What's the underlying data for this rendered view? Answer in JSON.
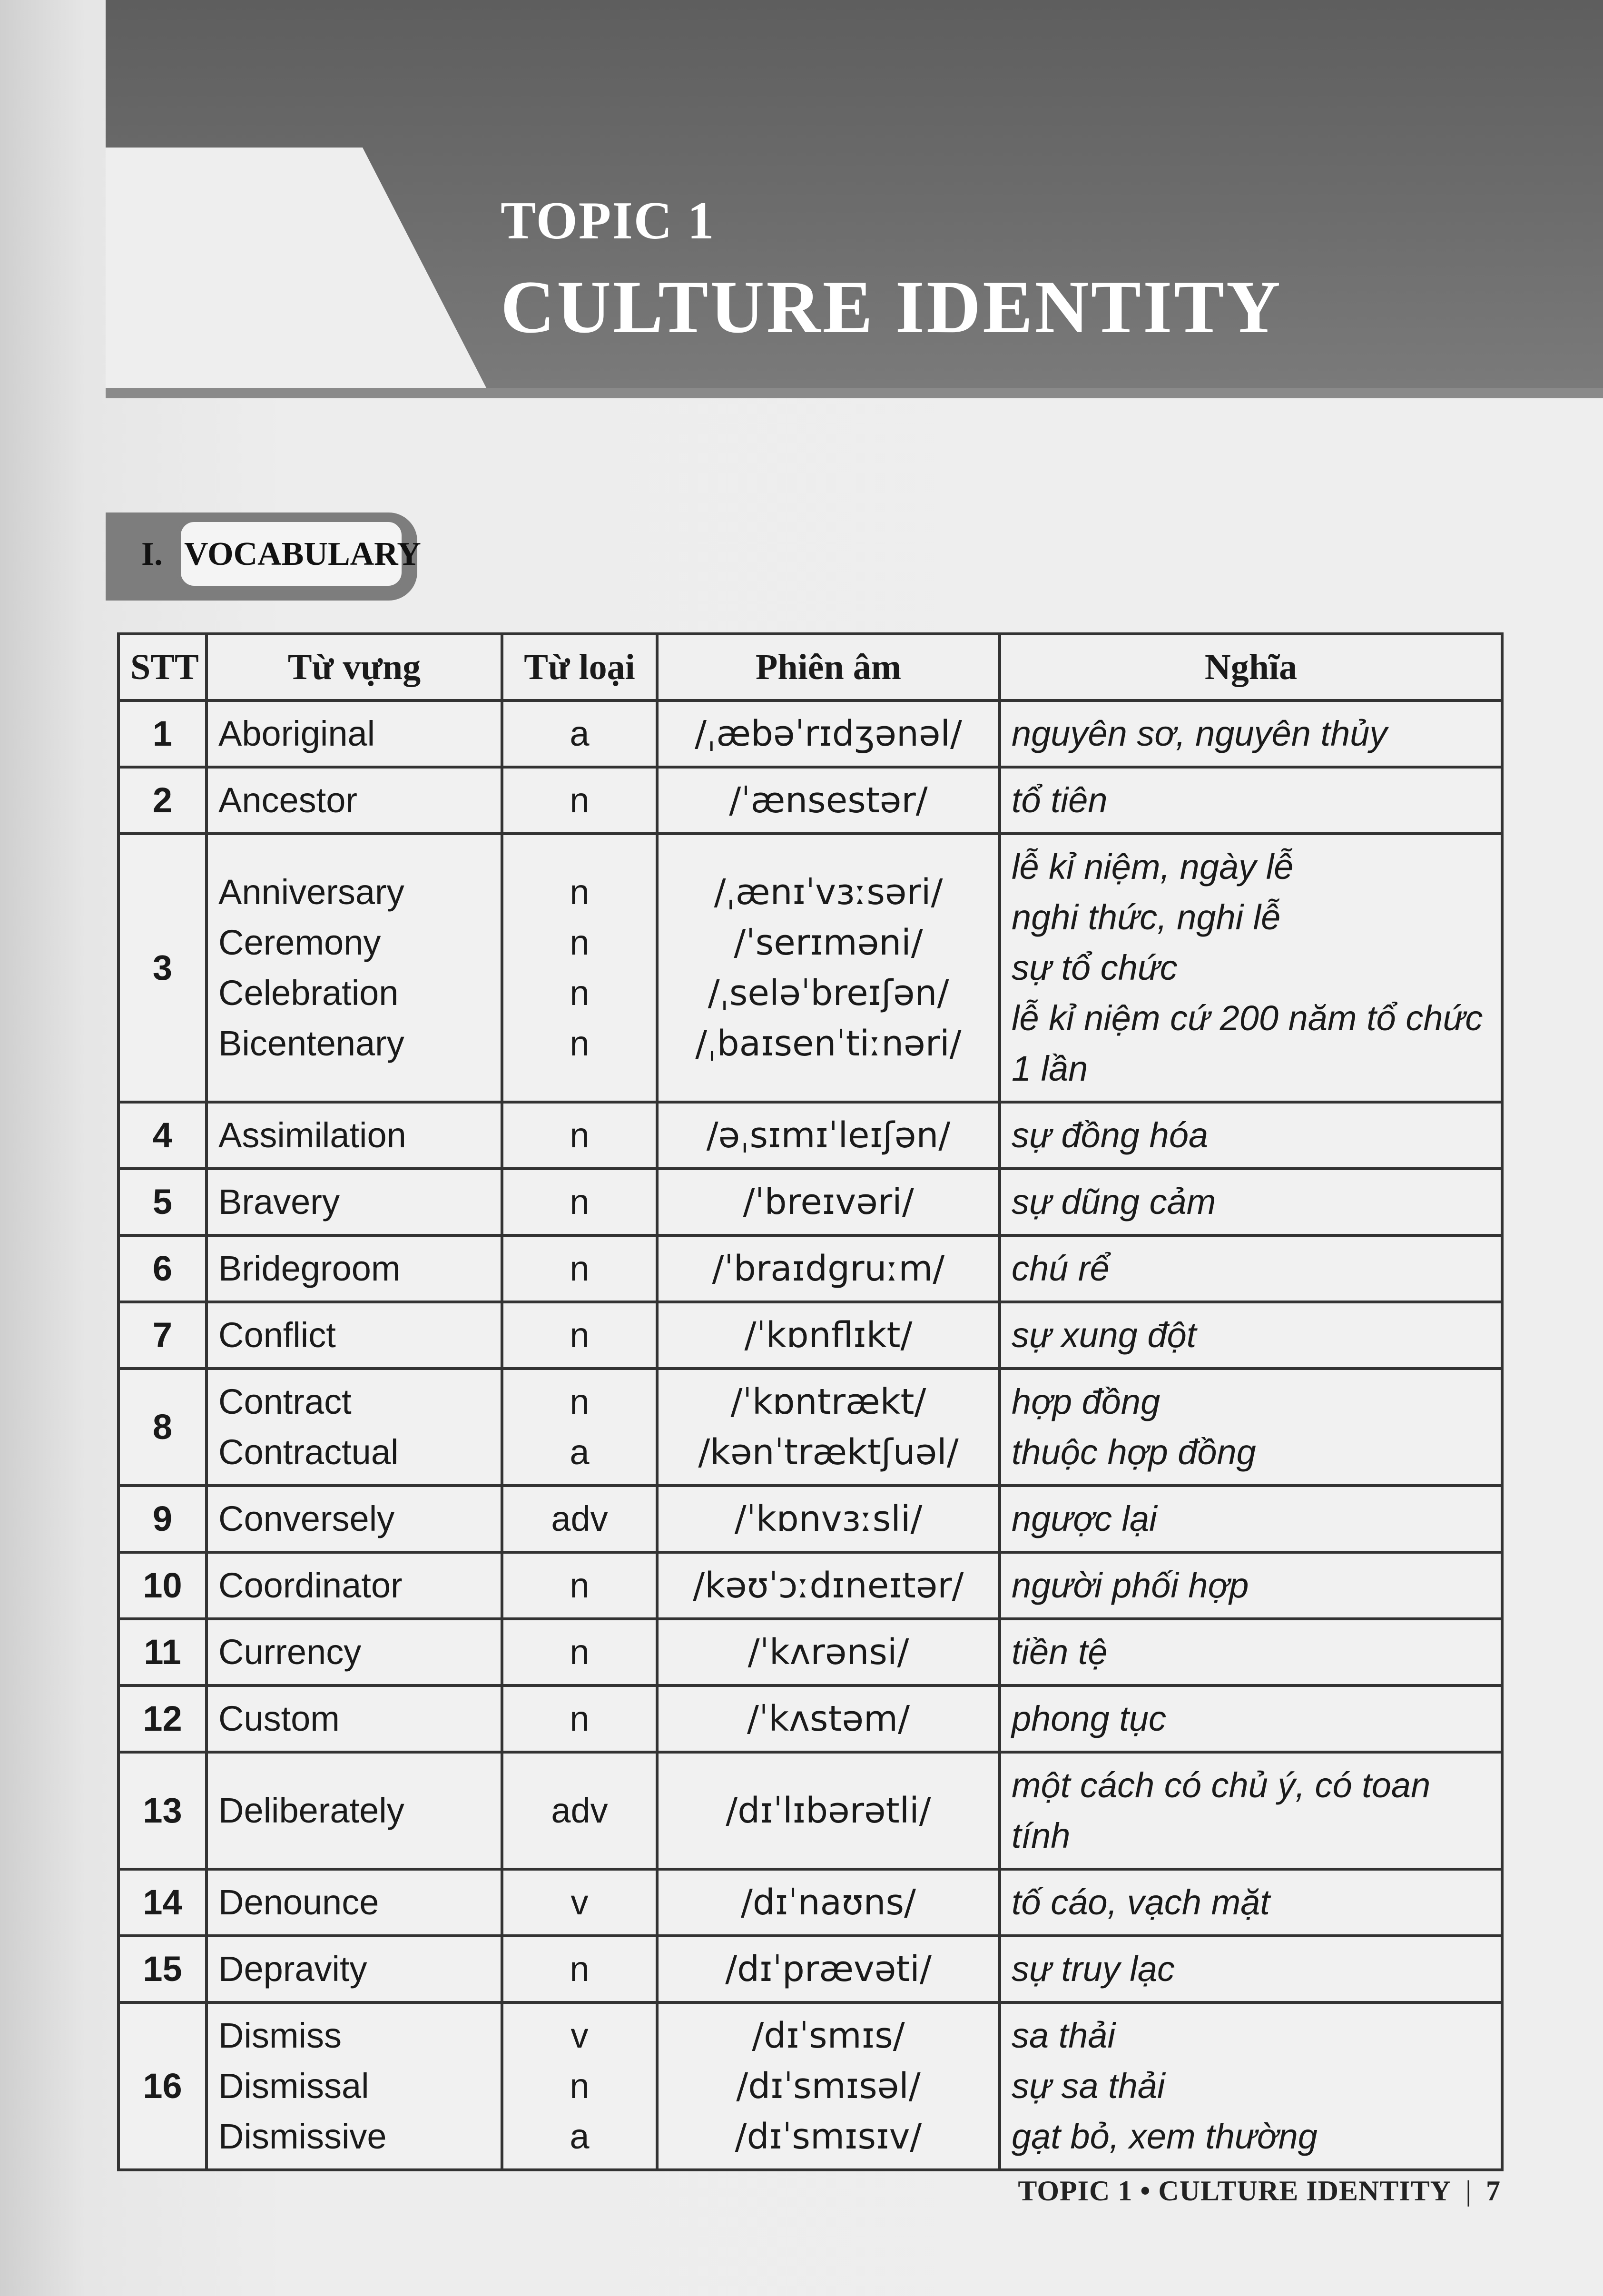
{
  "header": {
    "topic_label": "TOPIC 1",
    "topic_title": "CULTURE IDENTITY"
  },
  "section": {
    "number": "I.",
    "name": "VOCABULARY"
  },
  "table": {
    "columns": [
      "STT",
      "Từ vựng",
      "Từ loại",
      "Phiên âm",
      "Nghĩa"
    ],
    "rows": [
      {
        "stt": "1",
        "entries": [
          {
            "word": "Aboriginal",
            "pos": "a",
            "ipa": "/ˌæbəˈrɪdʒənəl/",
            "meaning": "nguyên sơ, nguyên thủy"
          }
        ]
      },
      {
        "stt": "2",
        "entries": [
          {
            "word": "Ancestor",
            "pos": "n",
            "ipa": "/ˈænsestər/",
            "meaning": "tổ tiên"
          }
        ]
      },
      {
        "stt": "3",
        "entries": [
          {
            "word": "Anniversary",
            "pos": "n",
            "ipa": "/ˌænɪˈvɜːsəri/",
            "meaning": "lễ kỉ niệm, ngày lễ"
          },
          {
            "word": "Ceremony",
            "pos": "n",
            "ipa": "/ˈserɪməni/",
            "meaning": "nghi thức, nghi lễ"
          },
          {
            "word": "Celebration",
            "pos": "n",
            "ipa": "/ˌseləˈbreɪʃən/",
            "meaning": "sự tổ chức"
          },
          {
            "word": "Bicentenary",
            "pos": "n",
            "ipa": "/ˌbaɪsenˈtiːnəri/",
            "meaning": "lễ kỉ niệm cứ 200 năm tổ chức 1 lần"
          }
        ]
      },
      {
        "stt": "4",
        "entries": [
          {
            "word": "Assimilation",
            "pos": "n",
            "ipa": "/əˌsɪmɪˈleɪʃən/",
            "meaning": "sự đồng hóa"
          }
        ]
      },
      {
        "stt": "5",
        "entries": [
          {
            "word": "Bravery",
            "pos": "n",
            "ipa": "/ˈbreɪvəri/",
            "meaning": "sự dũng cảm"
          }
        ]
      },
      {
        "stt": "6",
        "entries": [
          {
            "word": "Bridegroom",
            "pos": "n",
            "ipa": "/ˈbraɪdgruːm/",
            "meaning": "chú rể"
          }
        ]
      },
      {
        "stt": "7",
        "entries": [
          {
            "word": "Conflict",
            "pos": "n",
            "ipa": "/ˈkɒnflɪkt/",
            "meaning": "sự xung đột"
          }
        ]
      },
      {
        "stt": "8",
        "entries": [
          {
            "word": "Contract",
            "pos": "n",
            "ipa": "/ˈkɒntrækt/",
            "meaning": "hợp đồng"
          },
          {
            "word": "Contractual",
            "pos": "a",
            "ipa": "/kənˈtræktʃuəl/",
            "meaning": "thuộc hợp đồng"
          }
        ]
      },
      {
        "stt": "9",
        "entries": [
          {
            "word": "Conversely",
            "pos": "adv",
            "ipa": "/ˈkɒnvɜːsli/",
            "meaning": "ngược lại"
          }
        ]
      },
      {
        "stt": "10",
        "entries": [
          {
            "word": "Coordinator",
            "pos": "n",
            "ipa": "/kəʊˈɔːdɪneɪtər/",
            "meaning": "người phối hợp"
          }
        ]
      },
      {
        "stt": "11",
        "entries": [
          {
            "word": "Currency",
            "pos": "n",
            "ipa": "/ˈkʌrənsi/",
            "meaning": "tiền tệ"
          }
        ]
      },
      {
        "stt": "12",
        "entries": [
          {
            "word": "Custom",
            "pos": "n",
            "ipa": "/ˈkʌstəm/",
            "meaning": "phong tục"
          }
        ]
      },
      {
        "stt": "13",
        "entries": [
          {
            "word": "Deliberately",
            "pos": "adv",
            "ipa": "/dɪˈlɪbərətli/",
            "meaning": "một cách có chủ ý, có toan tính"
          }
        ]
      },
      {
        "stt": "14",
        "entries": [
          {
            "word": "Denounce",
            "pos": "v",
            "ipa": "/dɪˈnaʊns/",
            "meaning": "tố cáo, vạch mặt"
          }
        ]
      },
      {
        "stt": "15",
        "entries": [
          {
            "word": "Depravity",
            "pos": "n",
            "ipa": "/dɪˈprævəti/",
            "meaning": "sự truy lạc"
          }
        ]
      },
      {
        "stt": "16",
        "entries": [
          {
            "word": "Dismiss",
            "pos": "v",
            "ipa": "/dɪˈsmɪs/",
            "meaning": "sa thải"
          },
          {
            "word": "Dismissal",
            "pos": "n",
            "ipa": "/dɪˈsmɪsəl/",
            "meaning": "sự sa thải"
          },
          {
            "word": "Dismissive",
            "pos": "a",
            "ipa": "/dɪˈsmɪsɪv/",
            "meaning": "gạt bỏ, xem thường"
          }
        ]
      }
    ]
  },
  "footer": {
    "running_title": "TOPIC 1 • CULTURE IDENTITY",
    "separator": "|",
    "page_number": "7"
  }
}
